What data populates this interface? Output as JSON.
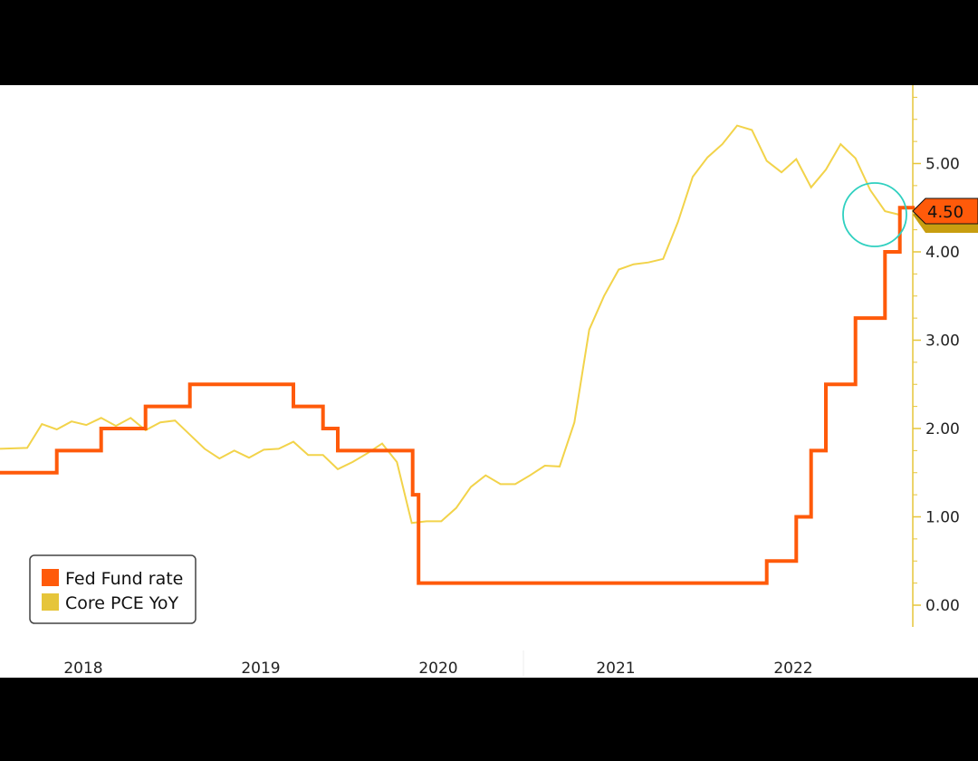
{
  "chart_data": {
    "type": "line",
    "title": "",
    "xlabel": "",
    "ylabel": "",
    "ylim": [
      -0.2,
      5.9
    ],
    "y_ticks": [
      "0.00",
      "1.00",
      "2.00",
      "3.00",
      "4.00",
      "5.00"
    ],
    "x_ticks": [
      "2018",
      "2019",
      "2020",
      "2021",
      "2022"
    ],
    "legend_position": "bottom-left",
    "grid": false,
    "series": [
      {
        "name": "Fed Fund rate",
        "color": "#ff5a0a",
        "step": true,
        "points": [
          [
            "2017-12",
            1.5
          ],
          [
            "2018-01",
            1.5
          ],
          [
            "2018-03",
            1.75
          ],
          [
            "2018-06",
            2.0
          ],
          [
            "2018-09",
            2.25
          ],
          [
            "2018-12",
            2.5
          ],
          [
            "2019-07",
            2.25
          ],
          [
            "2019-09",
            2.0
          ],
          [
            "2019-10",
            1.75
          ],
          [
            "2020-03-03",
            1.25
          ],
          [
            "2020-03-15",
            0.25
          ],
          [
            "2022-03",
            0.5
          ],
          [
            "2022-05",
            1.0
          ],
          [
            "2022-06",
            1.75
          ],
          [
            "2022-07",
            2.5
          ],
          [
            "2022-09",
            3.25
          ],
          [
            "2022-11",
            4.0
          ],
          [
            "2022-12",
            4.5
          ],
          [
            "2023-01",
            4.5
          ]
        ]
      },
      {
        "name": "Core PCE YoY",
        "color": "#f2d34a",
        "step": false,
        "points": [
          [
            "2017-12",
            1.77
          ],
          [
            "2018-01",
            1.78
          ],
          [
            "2018-02",
            2.05
          ],
          [
            "2018-03",
            1.99
          ],
          [
            "2018-04",
            2.08
          ],
          [
            "2018-05",
            2.04
          ],
          [
            "2018-06",
            2.12
          ],
          [
            "2018-07",
            2.03
          ],
          [
            "2018-08",
            2.12
          ],
          [
            "2018-09",
            1.98
          ],
          [
            "2018-10",
            2.07
          ],
          [
            "2018-11",
            2.09
          ],
          [
            "2018-12",
            1.93
          ],
          [
            "2019-01",
            1.77
          ],
          [
            "2019-02",
            1.66
          ],
          [
            "2019-03",
            1.75
          ],
          [
            "2019-04",
            1.67
          ],
          [
            "2019-05",
            1.76
          ],
          [
            "2019-06",
            1.77
          ],
          [
            "2019-07",
            1.85
          ],
          [
            "2019-08",
            1.7
          ],
          [
            "2019-09",
            1.7
          ],
          [
            "2019-10",
            1.54
          ],
          [
            "2019-11",
            1.62
          ],
          [
            "2019-12",
            1.72
          ],
          [
            "2020-01",
            1.83
          ],
          [
            "2020-02",
            1.62
          ],
          [
            "2020-03",
            0.93
          ],
          [
            "2020-04",
            0.95
          ],
          [
            "2020-05",
            0.95
          ],
          [
            "2020-06",
            1.1
          ],
          [
            "2020-07",
            1.34
          ],
          [
            "2020-08",
            1.47
          ],
          [
            "2020-09",
            1.37
          ],
          [
            "2020-10",
            1.37
          ],
          [
            "2020-11",
            1.47
          ],
          [
            "2020-12",
            1.58
          ],
          [
            "2021-01",
            1.57
          ],
          [
            "2021-02",
            2.07
          ],
          [
            "2021-03",
            3.12
          ],
          [
            "2021-04",
            3.5
          ],
          [
            "2021-05",
            3.8
          ],
          [
            "2021-06",
            3.86
          ],
          [
            "2021-07",
            3.88
          ],
          [
            "2021-08",
            3.92
          ],
          [
            "2021-09",
            4.34
          ],
          [
            "2021-10",
            4.85
          ],
          [
            "2021-11",
            5.07
          ],
          [
            "2021-12",
            5.22
          ],
          [
            "2022-01",
            5.43
          ],
          [
            "2022-02",
            5.38
          ],
          [
            "2022-03",
            5.03
          ],
          [
            "2022-04",
            4.9
          ],
          [
            "2022-05",
            5.05
          ],
          [
            "2022-06",
            4.73
          ],
          [
            "2022-07",
            4.93
          ],
          [
            "2022-08",
            5.22
          ],
          [
            "2022-09",
            5.06
          ],
          [
            "2022-10",
            4.7
          ],
          [
            "2022-11",
            4.46
          ],
          [
            "2022-12",
            4.42
          ]
        ]
      }
    ],
    "last_value_label": "4.50",
    "highlight_circle": "around latest Fed Fund rate and Core PCE crossover"
  }
}
